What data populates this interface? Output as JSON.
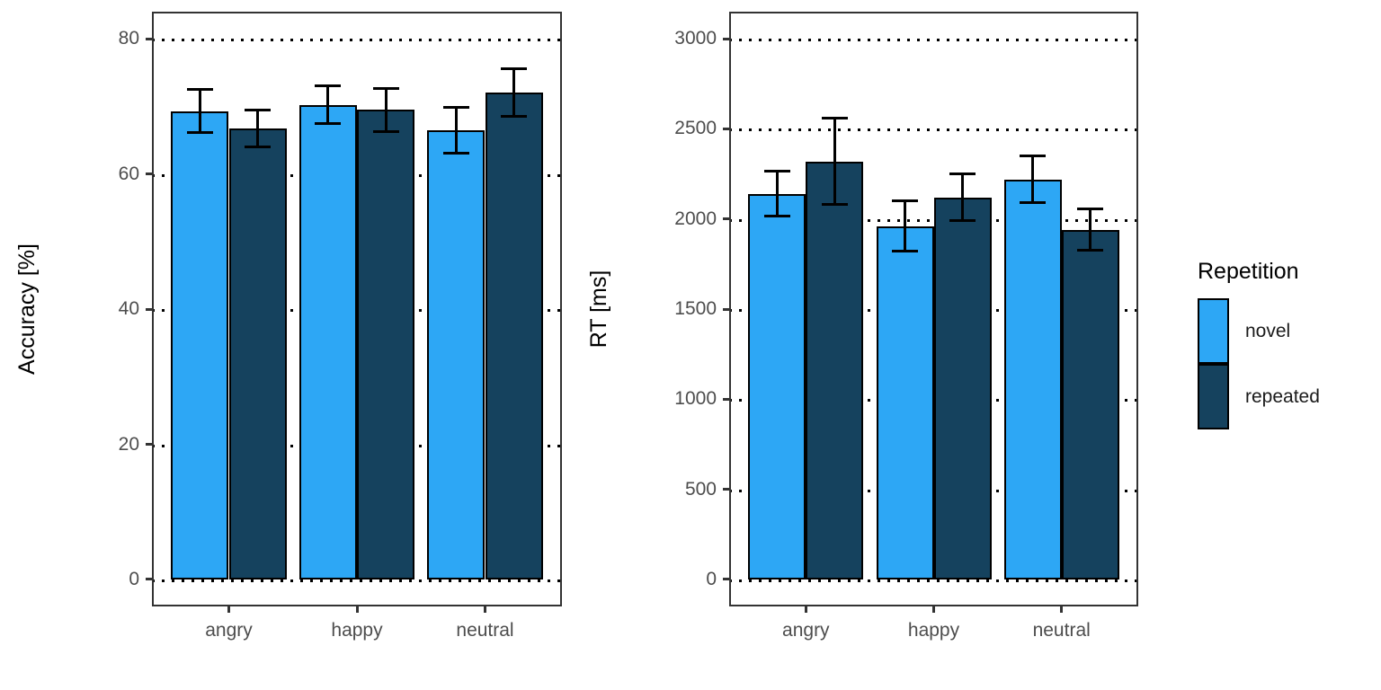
{
  "chart_data": [
    {
      "type": "bar",
      "ylabel": "Accuracy [%]",
      "xlabel": "",
      "categories": [
        "angry",
        "happy",
        "neutral"
      ],
      "yticks": [
        0,
        20,
        40,
        60,
        80
      ],
      "ylim": [
        0,
        80
      ],
      "grid": "dotted-horizontal",
      "legend_position": "none",
      "series": [
        {
          "name": "novel",
          "color": "#2DA7F5",
          "values": [
            69.3,
            70.2,
            66.5
          ],
          "errors": [
            3.2,
            2.8,
            3.4
          ]
        },
        {
          "name": "repeated",
          "color": "#15425E",
          "values": [
            66.7,
            69.5,
            72.0
          ],
          "errors": [
            2.7,
            3.2,
            3.5
          ]
        }
      ]
    },
    {
      "type": "bar",
      "ylabel": "RT [ms]",
      "xlabel": "",
      "categories": [
        "angry",
        "happy",
        "neutral"
      ],
      "yticks": [
        0,
        500,
        1000,
        1500,
        2000,
        2500,
        3000
      ],
      "ylim": [
        0,
        3000
      ],
      "grid": "dotted-horizontal",
      "legend_position": "right",
      "series": [
        {
          "name": "novel",
          "color": "#2DA7F5",
          "values": [
            2140,
            1960,
            2220
          ],
          "errors": [
            125,
            140,
            130
          ]
        },
        {
          "name": "repeated",
          "color": "#15425E",
          "values": [
            2320,
            2120,
            1940
          ],
          "errors": [
            240,
            130,
            115
          ]
        }
      ]
    }
  ],
  "legend": {
    "title": "Repetition",
    "items": [
      {
        "label": "novel",
        "color": "#2DA7F5"
      },
      {
        "label": "repeated",
        "color": "#15425E"
      }
    ]
  }
}
